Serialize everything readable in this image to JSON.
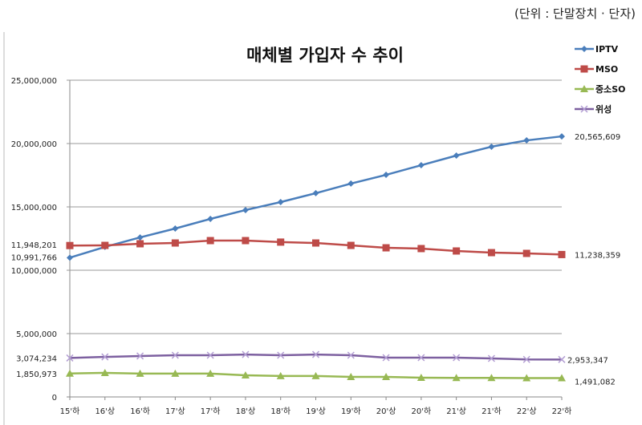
{
  "unit_note": "(단위 : 단말장치 · 단자)",
  "chart_data": {
    "type": "line",
    "title": "매체별 가입자 수 추이",
    "xlabel": "",
    "ylabel": "",
    "categories": [
      "15'하",
      "16'상",
      "16'하",
      "17'상",
      "17'하",
      "18'상",
      "18'하",
      "19'상",
      "19'하",
      "20'상",
      "20'하",
      "21'상",
      "21'하",
      "22'상",
      "22'하"
    ],
    "ylim": [
      0,
      25000000
    ],
    "yticks": [
      0,
      5000000,
      10000000,
      15000000,
      20000000,
      25000000
    ],
    "ytick_labels": [
      "0",
      "5,000,000",
      "10,000,000",
      "15,000,000",
      "20,000,000",
      "25,000,000"
    ],
    "grid": true,
    "legend_position": "top-right",
    "series": [
      {
        "name": "IPTV",
        "color": "#4a7ebb",
        "marker": "diamond",
        "values": [
          10991766,
          11840000,
          12590000,
          13290000,
          14050000,
          14750000,
          15380000,
          16080000,
          16840000,
          17530000,
          18290000,
          19050000,
          19750000,
          20250000,
          20565609
        ],
        "start_label": "10,991,766",
        "end_label": "20,565,609"
      },
      {
        "name": "MSO",
        "color": "#be4b48",
        "marker": "square",
        "values": [
          11948201,
          11960000,
          12090000,
          12150000,
          12340000,
          12340000,
          12220000,
          12150000,
          11960000,
          11770000,
          11710000,
          11520000,
          11390000,
          11330000,
          11238359
        ],
        "start_label": "11,948,201",
        "end_label": "11,238,359"
      },
      {
        "name": "중소SO",
        "color": "#98b954",
        "marker": "triangle",
        "values": [
          1850973,
          1900000,
          1840000,
          1840000,
          1840000,
          1710000,
          1650000,
          1650000,
          1580000,
          1580000,
          1520000,
          1500000,
          1500000,
          1491082,
          1491082
        ],
        "start_label": "1,850,973",
        "end_label": "1,491,082"
      },
      {
        "name": "위성",
        "color": "#7d60a0",
        "marker": "x",
        "values": [
          3074234,
          3160000,
          3230000,
          3290000,
          3290000,
          3350000,
          3290000,
          3350000,
          3290000,
          3100000,
          3100000,
          3100000,
          3040000,
          2960000,
          2953347
        ],
        "start_label": "3,074,234",
        "end_label": "2,953,347"
      }
    ]
  }
}
